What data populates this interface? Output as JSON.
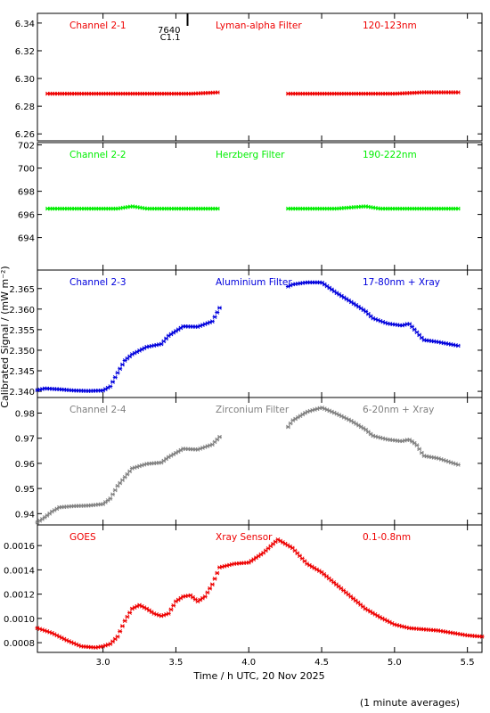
{
  "x_axis": {
    "label": "Time / h UTC, 20 Nov 2025",
    "range": [
      2.55,
      5.6
    ],
    "ticks": [
      "3.0",
      "3.5",
      "4.0",
      "4.5",
      "5.0",
      "5.5"
    ],
    "tick_values": [
      3.0,
      3.5,
      4.0,
      4.5,
      5.0,
      5.5
    ]
  },
  "y_label": "Calibrated Signal / (mW m⁻²)",
  "footnote": "(1 minute averages)",
  "flare_marker": {
    "time": 3.58,
    "label_top": "7640",
    "label_bottom": "C1.1"
  },
  "chart_data": [
    {
      "type": "scatter",
      "panel": "Channel 2-1",
      "header": {
        "name": "Channel 2-1",
        "filter": "Lyman-alpha Filter",
        "band": "120-123nm"
      },
      "color": "#ee0000",
      "ylim": [
        6.255,
        6.347
      ],
      "y_ticks": [
        "6.26",
        "6.28",
        "6.30",
        "6.32",
        "6.34"
      ],
      "y_tick_values": [
        6.26,
        6.28,
        6.3,
        6.32,
        6.34
      ],
      "series": [
        {
          "x": [
            2.62,
            2.8,
            3.0,
            3.2,
            3.4,
            3.6,
            3.8,
            4.27,
            4.5,
            4.8,
            5.0,
            5.2,
            5.45
          ],
          "y": [
            6.289,
            6.289,
            6.289,
            6.289,
            6.289,
            6.289,
            6.29,
            6.289,
            6.289,
            6.289,
            6.289,
            6.29,
            6.29
          ],
          "segments": [
            [
              2.62,
              3.8
            ],
            [
              4.27,
              5.45
            ]
          ]
        }
      ]
    },
    {
      "type": "scatter",
      "panel": "Channel 2-2",
      "header": {
        "name": "Channel 2-2",
        "filter": "Herzberg Filter",
        "band": "190-222nm"
      },
      "color": "#00ee00",
      "ylim": [
        691.2,
        702.2
      ],
      "y_ticks": [
        "694",
        "696",
        "698",
        "700",
        "702"
      ],
      "y_tick_values": [
        694,
        696,
        698,
        700,
        702
      ],
      "series": [
        {
          "x": [
            2.62,
            2.9,
            3.1,
            3.2,
            3.3,
            3.5,
            3.8,
            4.27,
            4.6,
            4.8,
            4.9,
            5.2,
            5.45
          ],
          "y": [
            696.5,
            696.5,
            696.5,
            696.7,
            696.5,
            696.5,
            696.5,
            696.5,
            696.5,
            696.7,
            696.5,
            696.5,
            696.5
          ],
          "segments": [
            [
              2.62,
              3.8
            ],
            [
              4.27,
              5.45
            ]
          ]
        }
      ]
    },
    {
      "type": "scatter",
      "panel": "Channel 2-3",
      "header": {
        "name": "Channel 2-3",
        "filter": "Aluminium Filter",
        "band": "17-80nm + Xray"
      },
      "color": "#0000dd",
      "ylim": [
        2.3385,
        2.3695
      ],
      "y_ticks": [
        "2.340",
        "2.345",
        "2.350",
        "2.355",
        "2.360",
        "2.365"
      ],
      "y_tick_values": [
        2.34,
        2.345,
        2.35,
        2.355,
        2.36,
        2.365
      ],
      "series": [
        {
          "x": [
            2.55,
            2.6,
            2.7,
            2.8,
            2.9,
            3.0,
            3.05,
            3.1,
            3.15,
            3.2,
            3.3,
            3.4,
            3.45,
            3.55,
            3.65,
            3.75,
            3.8,
            4.27,
            4.3,
            4.4,
            4.5,
            4.6,
            4.7,
            4.8,
            4.85,
            4.95,
            5.05,
            5.1,
            5.15,
            5.2,
            5.3,
            5.45
          ],
          "y": [
            2.3403,
            2.3407,
            2.3405,
            2.3402,
            2.3401,
            2.3402,
            2.3412,
            2.3445,
            2.3475,
            2.349,
            2.3508,
            2.3515,
            2.3535,
            2.3558,
            2.3557,
            2.357,
            2.3603,
            2.3655,
            2.366,
            2.3665,
            2.3665,
            2.364,
            2.3618,
            2.3595,
            2.3578,
            2.3565,
            2.356,
            2.3565,
            2.3545,
            2.3525,
            2.352,
            2.351
          ],
          "segments": [
            [
              2.55,
              3.8
            ],
            [
              4.27,
              5.45
            ]
          ]
        }
      ]
    },
    {
      "type": "scatter",
      "panel": "Channel 2-4",
      "header": {
        "name": "Channel 2-4",
        "filter": "Zirconium Filter",
        "band": "6-20nm + Xray"
      },
      "color": "#808080",
      "ylim": [
        0.9355,
        0.9862
      ],
      "y_ticks": [
        "0.94",
        "0.95",
        "0.96",
        "0.97",
        "0.98"
      ],
      "y_tick_values": [
        0.94,
        0.95,
        0.96,
        0.97,
        0.98
      ],
      "series": [
        {
          "x": [
            2.55,
            2.6,
            2.65,
            2.7,
            2.8,
            2.9,
            3.0,
            3.05,
            3.1,
            3.15,
            3.2,
            3.3,
            3.4,
            3.45,
            3.55,
            3.65,
            3.75,
            3.8,
            4.27,
            4.3,
            4.4,
            4.5,
            4.6,
            4.7,
            4.8,
            4.85,
            4.95,
            5.05,
            5.1,
            5.15,
            5.2,
            5.3,
            5.45
          ],
          "y": [
            0.9365,
            0.9385,
            0.9408,
            0.9425,
            0.943,
            0.9432,
            0.9438,
            0.946,
            0.951,
            0.9545,
            0.958,
            0.9598,
            0.9603,
            0.9625,
            0.9658,
            0.9655,
            0.9675,
            0.9705,
            0.9745,
            0.977,
            0.9805,
            0.9822,
            0.9798,
            0.977,
            0.9735,
            0.971,
            0.9695,
            0.9688,
            0.9695,
            0.9675,
            0.963,
            0.962,
            0.9592
          ],
          "segments": [
            [
              2.55,
              3.8
            ],
            [
              4.27,
              5.45
            ]
          ]
        }
      ]
    },
    {
      "type": "scatter",
      "panel": "GOES",
      "header": {
        "name": "GOES",
        "filter": "Xray Sensor",
        "band": "0.1-0.8nm"
      },
      "color": "#ee0000",
      "ylim": [
        0.00072,
        0.00177
      ],
      "y_ticks": [
        "0.0008",
        "0.0010",
        "0.0012",
        "0.0014",
        "0.0016"
      ],
      "y_tick_values": [
        0.0008,
        0.001,
        0.0012,
        0.0014,
        0.0016
      ],
      "series": [
        {
          "x": [
            2.55,
            2.65,
            2.75,
            2.85,
            2.95,
            3.0,
            3.05,
            3.1,
            3.15,
            3.2,
            3.25,
            3.3,
            3.35,
            3.4,
            3.45,
            3.5,
            3.55,
            3.6,
            3.65,
            3.7,
            3.75,
            3.8,
            3.9,
            4.0,
            4.1,
            4.2,
            4.3,
            4.4,
            4.5,
            4.6,
            4.7,
            4.8,
            4.9,
            5.0,
            5.1,
            5.2,
            5.3,
            5.4,
            5.5,
            5.6
          ],
          "y": [
            0.00092,
            0.00088,
            0.00082,
            0.00077,
            0.00076,
            0.00077,
            0.00079,
            0.00085,
            0.00098,
            0.00108,
            0.00111,
            0.00108,
            0.00104,
            0.00102,
            0.00104,
            0.00114,
            0.00118,
            0.00119,
            0.00114,
            0.00118,
            0.00128,
            0.00142,
            0.00145,
            0.00146,
            0.00154,
            0.00165,
            0.00158,
            0.00145,
            0.00138,
            0.00128,
            0.00118,
            0.00108,
            0.00101,
            0.00095,
            0.00092,
            0.00091,
            0.0009,
            0.00088,
            0.00086,
            0.00085
          ],
          "segments": [
            [
              2.55,
              5.6
            ]
          ]
        }
      ]
    }
  ]
}
